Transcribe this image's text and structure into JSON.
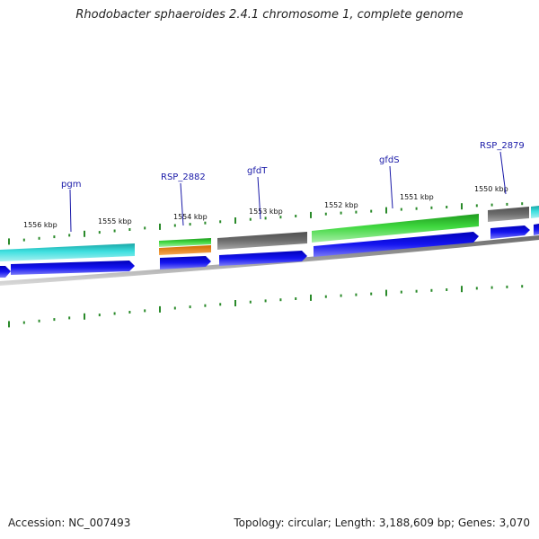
{
  "title": "Rhodobacter sphaeroides 2.4.1 chromosome 1, complete genome",
  "accession": "Accession: NC_007493",
  "topology": "Topology: circular; Length: 3,188,609 bp; Genes: 3,070",
  "kbp_labels": [
    "1556 kbp",
    "1555 kbp",
    "1554 kbp",
    "1553 kbp",
    "1552 kbp",
    "1551 kbp",
    "1550 kbp"
  ],
  "gene_labels": [
    "pgm",
    "RSP_2882",
    "gfdT",
    "gfdS",
    "RSP_2879"
  ],
  "colors": {
    "teal": "#2ec8c8",
    "green": "#33cc33",
    "orange": "#f08a1c",
    "grey": "#707070",
    "blue": "#1010e0",
    "tick": "#2a8a2a",
    "backbone": "#808080",
    "label": "#1a1aa8"
  }
}
